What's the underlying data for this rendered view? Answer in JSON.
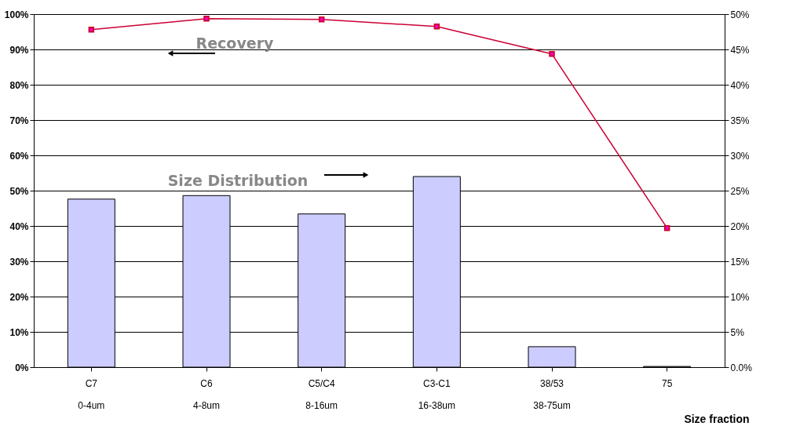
{
  "chart_data": {
    "type": "bar",
    "xlabel": "Size fraction",
    "categories": [
      "C7\n0-4um",
      "C6\n4-8um",
      "C5/C4\n8-16um",
      "C3-C1\n16-38um",
      "38/53\n38-75um",
      "75"
    ],
    "series": [
      {
        "name": "Size Distribution",
        "axis": "y2",
        "color": "#ccccff",
        "values": [
          23.8,
          24.3,
          21.7,
          27.0,
          2.9,
          0.1
        ]
      },
      {
        "name": "Recovery",
        "type": "line",
        "color": "#cc0033",
        "values": [
          95.6,
          98.7,
          98.5,
          96.5,
          88.7,
          39.4
        ]
      }
    ],
    "ylim": [
      0,
      100
    ],
    "yticks": [
      {
        "value": 0,
        "label": "0%"
      },
      {
        "value": 10,
        "label": "10%"
      },
      {
        "value": 20,
        "label": "20%"
      },
      {
        "value": 30,
        "label": "30%"
      },
      {
        "value": 40,
        "label": "40%"
      },
      {
        "value": 50,
        "label": "50%"
      },
      {
        "value": 60,
        "label": "60%"
      },
      {
        "value": 70,
        "label": "70%"
      },
      {
        "value": 80,
        "label": "80%"
      },
      {
        "value": 90,
        "label": "90%"
      },
      {
        "value": 100,
        "label": "100%"
      }
    ],
    "y2lim": [
      0,
      50
    ],
    "y2ticks": [
      {
        "value": 0,
        "label": "0.0%"
      },
      {
        "value": 5,
        "label": "5%"
      },
      {
        "value": 10,
        "label": "10%"
      },
      {
        "value": 15,
        "label": "15%"
      },
      {
        "value": 20,
        "label": "20%"
      },
      {
        "value": 25,
        "label": "25%"
      },
      {
        "value": 30,
        "label": "30%"
      },
      {
        "value": 35,
        "label": "35%"
      },
      {
        "value": 40,
        "label": "40%"
      },
      {
        "value": 45,
        "label": "45%"
      },
      {
        "value": 50,
        "label": "50%"
      }
    ],
    "grid": "y",
    "legend": false,
    "marker": "square",
    "line_style": "solid"
  }
}
